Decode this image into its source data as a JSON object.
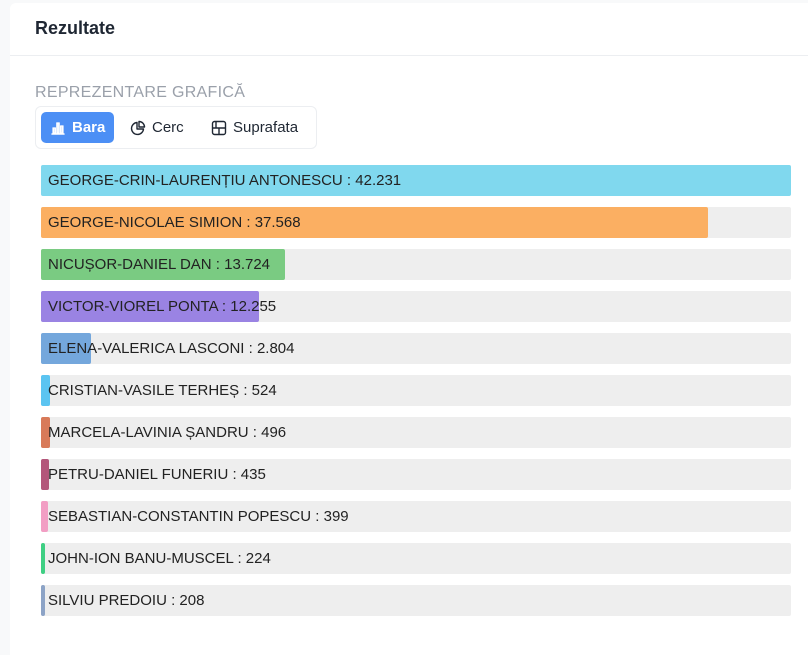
{
  "header": {
    "title": "Rezultate"
  },
  "section_label": "REPREZENTARE GRAFICĂ",
  "toggle": {
    "bar_label": "Bara",
    "pie_label": "Cerc",
    "area_label": "Suprafata",
    "active": "bar"
  },
  "colors": {
    "accent": "#4c8ff5",
    "track": "#eeeeee"
  },
  "chart_data": {
    "type": "bar",
    "orientation": "horizontal",
    "max_value": 42231,
    "items": [
      {
        "name": "GEORGE-CRIN-LAURENȚIU ANTONESCU",
        "value": 42231,
        "value_label": "42.231",
        "color": "#80d8ee"
      },
      {
        "name": "GEORGE-NICOLAE SIMION",
        "value": 37568,
        "value_label": "37.568",
        "color": "#fbaf62"
      },
      {
        "name": "NICUȘOR-DANIEL DAN",
        "value": 13724,
        "value_label": "13.724",
        "color": "#7acb82"
      },
      {
        "name": "VICTOR-VIOREL PONTA",
        "value": 12255,
        "value_label": "12.255",
        "color": "#9a83e3"
      },
      {
        "name": "ELENA-VALERICA LASCONI",
        "value": 2804,
        "value_label": "2.804",
        "color": "#74a7dc"
      },
      {
        "name": "CRISTIAN-VASILE TERHEȘ",
        "value": 524,
        "value_label": "524",
        "color": "#5bc4f1"
      },
      {
        "name": "MARCELA-LAVINIA ȘANDRU",
        "value": 496,
        "value_label": "496",
        "color": "#d87a59"
      },
      {
        "name": "PETRU-DANIEL FUNERIU",
        "value": 435,
        "value_label": "435",
        "color": "#b3567a"
      },
      {
        "name": "SEBASTIAN-CONSTANTIN POPESCU",
        "value": 399,
        "value_label": "399",
        "color": "#f29ec4"
      },
      {
        "name": "JOHN-ION BANU-MUSCEL",
        "value": 224,
        "value_label": "224",
        "color": "#3ecf83"
      },
      {
        "name": "SILVIU PREDOIU",
        "value": 208,
        "value_label": "208",
        "color": "#8ca3c6"
      }
    ]
  }
}
